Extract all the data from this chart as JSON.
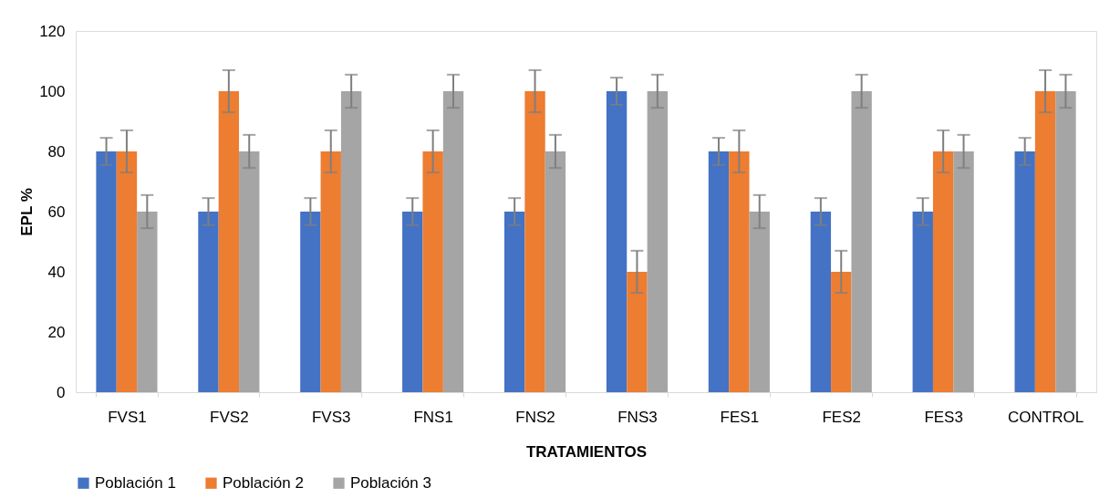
{
  "chart_data": {
    "type": "bar",
    "xlabel": "TRATAMIENTOS",
    "ylabel": "EPL %",
    "categories": [
      "FVS1",
      "FVS2",
      "FVS3",
      "FNS1",
      "FNS2",
      "FNS3",
      "FES1",
      "FES2",
      "FES3",
      "CONTROL"
    ],
    "series": [
      {
        "name": "Población 1",
        "color": "#4472c4",
        "values": [
          80,
          60,
          60,
          60,
          60,
          100,
          80,
          60,
          60,
          80
        ],
        "errors": [
          4.5,
          4.5,
          4.5,
          4.5,
          4.5,
          4.5,
          4.5,
          4.5,
          4.5,
          4.5
        ]
      },
      {
        "name": "Población 2",
        "color": "#ed7d31",
        "values": [
          80,
          100,
          80,
          80,
          100,
          40,
          80,
          40,
          80,
          100
        ],
        "errors": [
          7,
          7,
          7,
          7,
          7,
          7,
          7,
          7,
          7,
          7
        ]
      },
      {
        "name": "Población 3",
        "color": "#a5a5a5",
        "values": [
          60,
          80,
          100,
          100,
          80,
          100,
          60,
          100,
          80,
          100
        ],
        "errors": [
          5.5,
          5.5,
          5.5,
          5.5,
          5.5,
          5.5,
          5.5,
          5.5,
          5.5,
          5.5
        ]
      }
    ],
    "ylim": [
      0,
      120
    ],
    "yticks": [
      0,
      20,
      40,
      60,
      80,
      100,
      120
    ],
    "grid": false,
    "legend": "bottom"
  }
}
